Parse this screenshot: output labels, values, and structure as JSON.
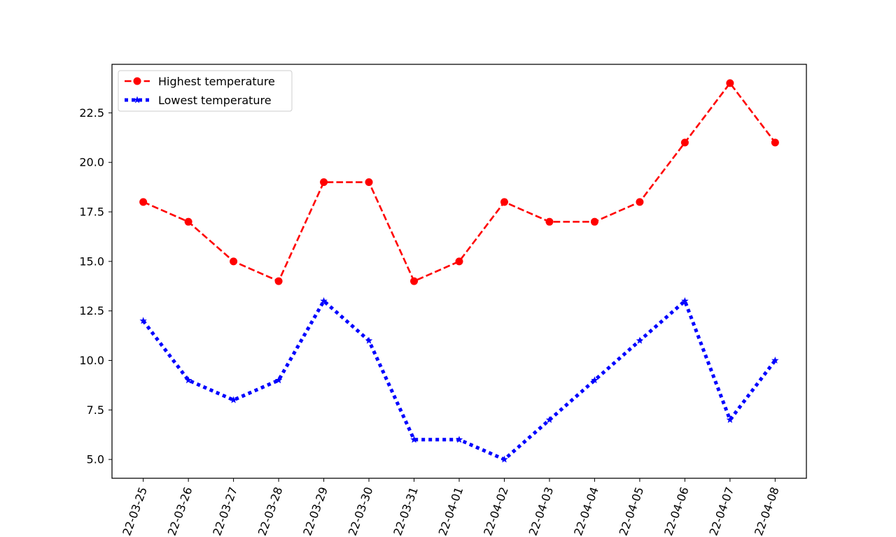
{
  "chart_data": {
    "type": "line",
    "title": "",
    "xlabel": "",
    "ylabel": "",
    "x": [
      "2022-03-25",
      "2022-03-26",
      "2022-03-27",
      "2022-03-28",
      "2022-03-29",
      "2022-03-30",
      "2022-03-31",
      "2022-04-01",
      "2022-04-02",
      "2022-04-03",
      "2022-04-04",
      "2022-04-05",
      "2022-04-06",
      "2022-04-07",
      "2022-04-08"
    ],
    "x_tick_labels": [
      "22-03-25",
      "22-03-26",
      "22-03-27",
      "22-03-28",
      "22-03-29",
      "22-03-30",
      "22-03-31",
      "22-04-01",
      "22-04-02",
      "22-04-03",
      "22-04-04",
      "22-04-05",
      "22-04-06",
      "22-04-07",
      "22-04-08"
    ],
    "ylim": [
      4.05,
      24.95
    ],
    "y_ticks": [
      "5.0",
      "7.5",
      "10.0",
      "12.5",
      "15.0",
      "17.5",
      "20.0",
      "22.5"
    ],
    "grid": false,
    "legend_position": "top-left",
    "series": [
      {
        "name": "Highest temperature",
        "values": [
          18,
          17,
          15,
          14,
          19,
          19,
          14,
          15,
          18,
          17,
          17,
          18,
          21,
          24,
          21
        ],
        "color": "#ff0000",
        "line_style": "dashed",
        "marker": "circle"
      },
      {
        "name": "Lowest temperature",
        "values": [
          12,
          9,
          8,
          9,
          13,
          11,
          6,
          6,
          5,
          7,
          9,
          11,
          13,
          7,
          10
        ],
        "color": "#0000ff",
        "line_style": "dotted",
        "marker": "star"
      }
    ]
  }
}
